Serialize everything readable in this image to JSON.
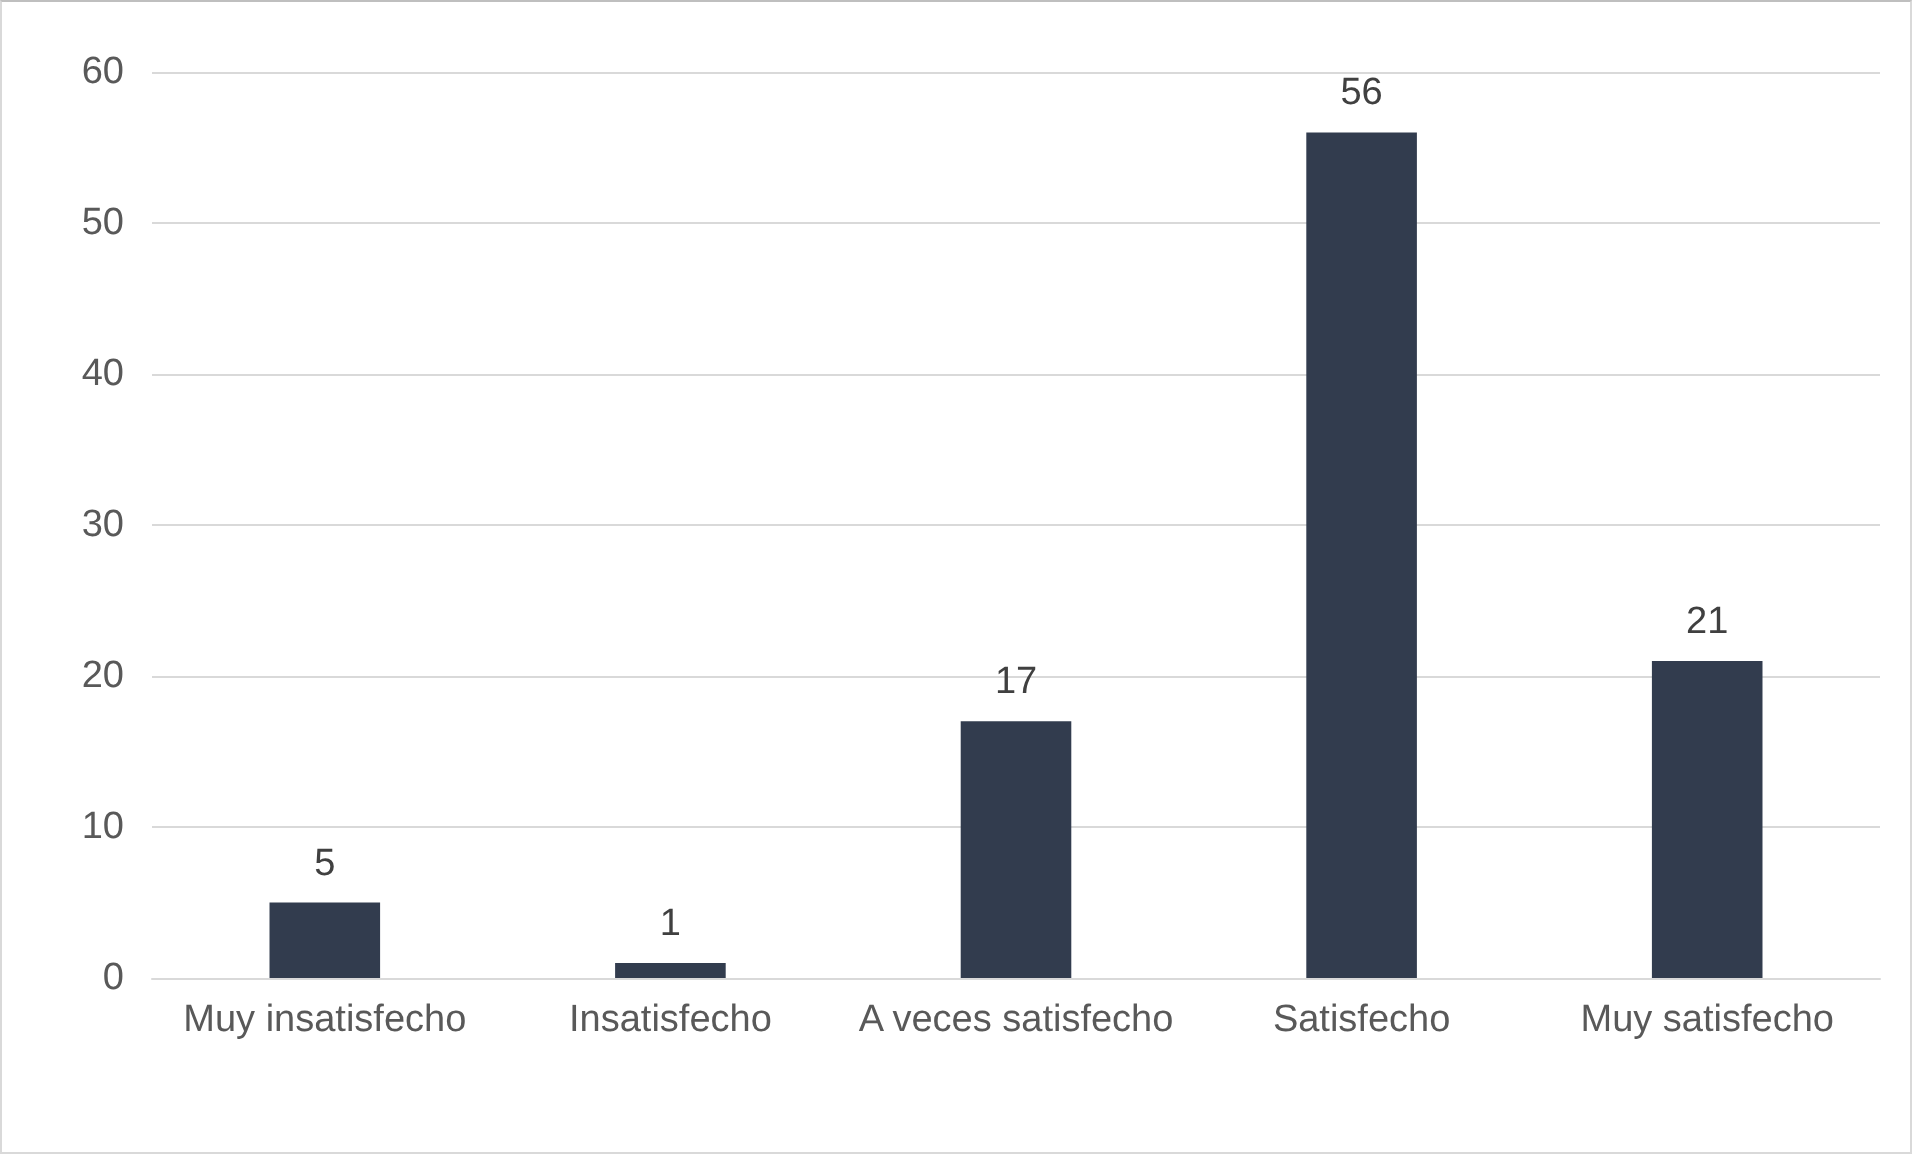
{
  "chart_data": {
    "type": "bar",
    "categories": [
      "Muy insatisfecho",
      "Insatisfecho",
      "A veces satisfecho",
      "Satisfecho",
      "Muy satisfecho"
    ],
    "values": [
      5,
      1,
      17,
      56,
      21
    ],
    "color": "#323c4e",
    "ylim": [
      0,
      60
    ],
    "yticks": [
      0,
      10,
      20,
      30,
      40,
      50,
      60
    ],
    "grid": "y",
    "data_labels": true
  }
}
